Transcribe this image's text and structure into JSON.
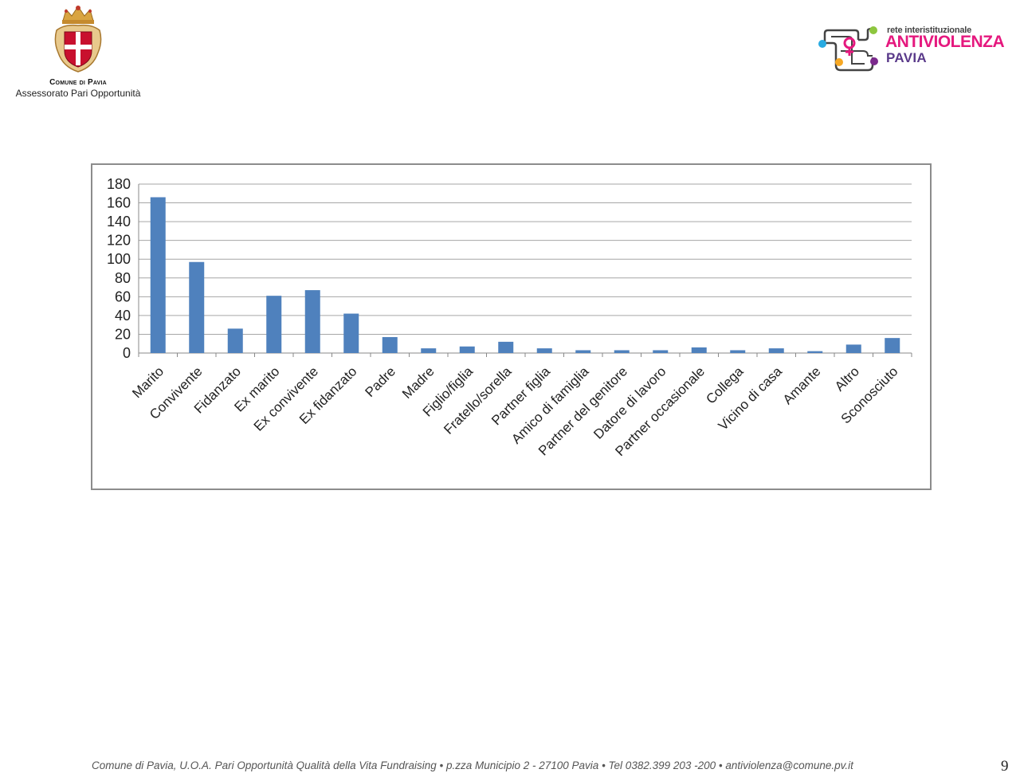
{
  "header": {
    "org_name": "Comune di Pavia",
    "org_sub": "Assessorato Pari Opportunità"
  },
  "logo": {
    "top_line": "rete interistituzionale",
    "main": "ANTIVIOLENZA",
    "city": "PAVIA",
    "colors": {
      "pink": "#e5187e",
      "purple": "#5a3a8a",
      "cyan": "#29abe2",
      "green": "#8dc63f",
      "orange": "#f7a823",
      "violet": "#7b2a8c"
    }
  },
  "chart_data": {
    "type": "bar",
    "categories": [
      "Marito",
      "Convivente",
      "Fidanzato",
      "Ex marito",
      "Ex convivente",
      "Ex fidanzato",
      "Padre",
      "Madre",
      "Figlio/figlia",
      "Fratello/sorella",
      "Partner figlia",
      "Amico di famiglia",
      "Partner del genitore",
      "Datore di lavoro",
      "Partner occasionale",
      "Collega",
      "Vicino di casa",
      "Amante",
      "Altro",
      "Sconosciuto"
    ],
    "values": [
      166,
      97,
      26,
      61,
      67,
      42,
      17,
      5,
      7,
      12,
      5,
      3,
      3,
      3,
      6,
      3,
      5,
      2,
      9,
      16
    ],
    "yticks": [
      0,
      20,
      40,
      60,
      80,
      100,
      120,
      140,
      160,
      180
    ],
    "ylim": [
      0,
      180
    ],
    "grid": true,
    "legend": "none",
    "bar_color": "#4f81bd"
  },
  "footer": {
    "text": "Comune di Pavia, U.O.A. Pari Opportunità Qualità della Vita Fundraising • p.zza Municipio 2 - 27100 Pavia • Tel 0382.399 203 -200 • antiviolenza@comune.pv.it",
    "page_number": "9"
  }
}
